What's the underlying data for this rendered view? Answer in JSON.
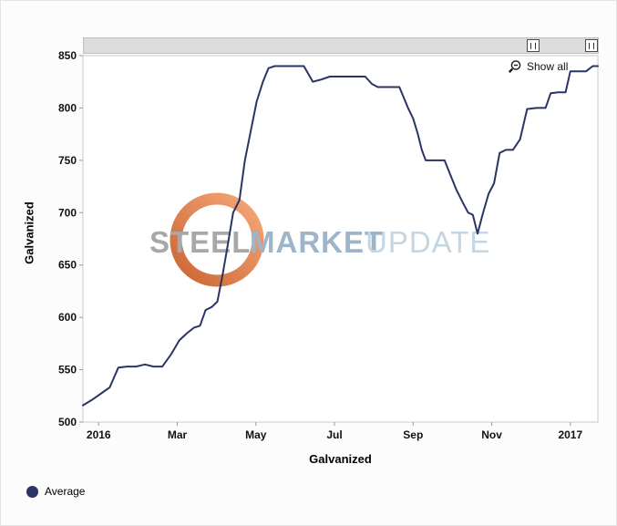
{
  "toolbar": {
    "show_all_label": "Show all"
  },
  "watermark": {
    "word1": "STEEL",
    "word2": "MARKET",
    "word3": "UPDATE",
    "ring_color_light": "#f49a62",
    "ring_color_dark": "#c44a10"
  },
  "chart_data": {
    "type": "line",
    "title": "",
    "xlabel": "Galvanized",
    "ylabel": "Galvanized",
    "x_unit": "months since Jan 2016",
    "xlim": [
      -0.4,
      12.7
    ],
    "ylim": [
      500,
      850
    ],
    "grid": false,
    "legend_position": "bottom-left",
    "y_ticks": [
      500,
      550,
      600,
      650,
      700,
      750,
      800,
      850
    ],
    "x_ticks": [
      {
        "pos": 0,
        "label": "2016"
      },
      {
        "pos": 2,
        "label": "Mar"
      },
      {
        "pos": 4,
        "label": "May"
      },
      {
        "pos": 6,
        "label": "Jul"
      },
      {
        "pos": 8,
        "label": "Sep"
      },
      {
        "pos": 10,
        "label": "Nov"
      },
      {
        "pos": 12,
        "label": "2017"
      }
    ],
    "legend": [
      {
        "label": "Average",
        "color": "#2a3565"
      }
    ],
    "series": [
      {
        "name": "Average",
        "color": "#2a3565",
        "points": [
          [
            -0.4,
            516
          ],
          [
            -0.18,
            521
          ],
          [
            0.05,
            527
          ],
          [
            0.28,
            533
          ],
          [
            0.5,
            552
          ],
          [
            0.72,
            553
          ],
          [
            0.95,
            553
          ],
          [
            1.18,
            555
          ],
          [
            1.4,
            553
          ],
          [
            1.62,
            553
          ],
          [
            1.85,
            565
          ],
          [
            2.05,
            578
          ],
          [
            2.25,
            585
          ],
          [
            2.42,
            590
          ],
          [
            2.58,
            592
          ],
          [
            2.72,
            607
          ],
          [
            2.88,
            610
          ],
          [
            3.02,
            615
          ],
          [
            3.15,
            640
          ],
          [
            3.28,
            668
          ],
          [
            3.42,
            700
          ],
          [
            3.58,
            712
          ],
          [
            3.72,
            750
          ],
          [
            3.88,
            780
          ],
          [
            4.02,
            806
          ],
          [
            4.18,
            825
          ],
          [
            4.32,
            838
          ],
          [
            4.48,
            840
          ],
          [
            4.72,
            840
          ],
          [
            4.98,
            840
          ],
          [
            5.22,
            840
          ],
          [
            5.45,
            825
          ],
          [
            5.65,
            827
          ],
          [
            5.88,
            830
          ],
          [
            6.1,
            830
          ],
          [
            6.35,
            830
          ],
          [
            6.58,
            830
          ],
          [
            6.78,
            830
          ],
          [
            6.95,
            823
          ],
          [
            7.1,
            820
          ],
          [
            7.3,
            820
          ],
          [
            7.5,
            820
          ],
          [
            7.65,
            820
          ],
          [
            7.87,
            800
          ],
          [
            8.0,
            790
          ],
          [
            8.12,
            775
          ],
          [
            8.22,
            760
          ],
          [
            8.32,
            750
          ],
          [
            8.55,
            750
          ],
          [
            8.8,
            750
          ],
          [
            8.96,
            735
          ],
          [
            9.1,
            722
          ],
          [
            9.26,
            710
          ],
          [
            9.4,
            700
          ],
          [
            9.52,
            698
          ],
          [
            9.64,
            680
          ],
          [
            9.78,
            700
          ],
          [
            9.92,
            718
          ],
          [
            10.06,
            728
          ],
          [
            10.2,
            757
          ],
          [
            10.36,
            760
          ],
          [
            10.54,
            760
          ],
          [
            10.72,
            770
          ],
          [
            10.9,
            799
          ],
          [
            11.15,
            800
          ],
          [
            11.37,
            800
          ],
          [
            11.5,
            814
          ],
          [
            11.7,
            815
          ],
          [
            11.88,
            815
          ],
          [
            12.0,
            835
          ],
          [
            12.2,
            835
          ],
          [
            12.4,
            835
          ],
          [
            12.57,
            840
          ],
          [
            12.7,
            840
          ]
        ]
      }
    ]
  }
}
